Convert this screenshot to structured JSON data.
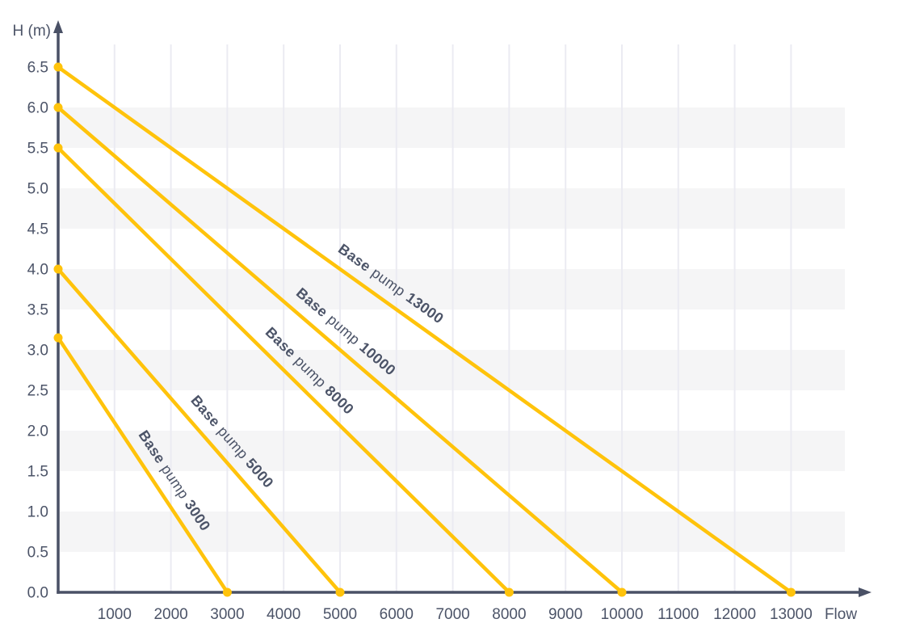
{
  "chart_data": {
    "type": "line",
    "xlabel": "Flow",
    "ylabel": "H (m)",
    "x_ticks": [
      1000,
      2000,
      3000,
      4000,
      5000,
      6000,
      7000,
      8000,
      9000,
      10000,
      11000,
      12000,
      13000
    ],
    "y_ticks": [
      "0.0",
      "0.5",
      "1.0",
      "1.5",
      "2.0",
      "2.5",
      "3.0",
      "3.5",
      "4.0",
      "4.5",
      "5.0",
      "5.5",
      "6.0",
      "6.5"
    ],
    "xlim": [
      0,
      14000
    ],
    "ylim": [
      0,
      6.75
    ],
    "grid": {
      "vertical_gridlines": true,
      "horizontal_gridlines": false,
      "shaded_bands_head_ranges": [
        [
          0.5,
          1.0
        ],
        [
          1.5,
          2.0
        ],
        [
          2.5,
          3.0
        ],
        [
          3.5,
          4.0
        ],
        [
          4.5,
          5.0
        ],
        [
          5.5,
          6.0
        ]
      ]
    },
    "series": [
      {
        "name": "Base pump 3000",
        "label_parts": [
          {
            "text": "Base",
            "bold": true
          },
          {
            "text": "pump",
            "bold": false
          },
          {
            "text": "3000",
            "bold": true
          }
        ],
        "points": [
          [
            0,
            3.15
          ],
          [
            3000,
            0
          ]
        ],
        "head_max_m": 3.15,
        "flow_max": 3000,
        "label_t": 0.6
      },
      {
        "name": "Base pump 5000",
        "label_parts": [
          {
            "text": "Base",
            "bold": true
          },
          {
            "text": "pump",
            "bold": false
          },
          {
            "text": "5000",
            "bold": true
          }
        ],
        "points": [
          [
            0,
            4.0
          ],
          [
            5000,
            0
          ]
        ],
        "head_max_m": 4.0,
        "flow_max": 5000,
        "label_t": 0.57
      },
      {
        "name": "Base pump 8000",
        "label_parts": [
          {
            "text": "Base",
            "bold": true
          },
          {
            "text": "pump",
            "bold": false
          },
          {
            "text": "8000",
            "bold": true
          }
        ],
        "points": [
          [
            0,
            5.5
          ],
          [
            8000,
            0
          ]
        ],
        "head_max_m": 5.5,
        "flow_max": 8000,
        "label_t": 0.53
      },
      {
        "name": "Base pump 10000",
        "label_parts": [
          {
            "text": "Base",
            "bold": true
          },
          {
            "text": "pump",
            "bold": false
          },
          {
            "text": "10000",
            "bold": true
          }
        ],
        "points": [
          [
            0,
            6.0
          ],
          [
            10000,
            0
          ]
        ],
        "head_max_m": 6.0,
        "flow_max": 10000,
        "label_t": 0.49
      },
      {
        "name": "Base pump 13000",
        "label_parts": [
          {
            "text": "Base",
            "bold": true
          },
          {
            "text": "pump",
            "bold": false
          },
          {
            "text": "13000",
            "bold": true
          }
        ],
        "points": [
          [
            0,
            6.5
          ],
          [
            13000,
            0
          ]
        ],
        "head_max_m": 6.5,
        "flow_max": 13000,
        "label_t": 0.44
      }
    ],
    "colors": {
      "curve": "#FFC30B",
      "axis": "#4A5166",
      "text": "#4C5468",
      "band": "#F5F5F6",
      "gridline": "#EBEBF2",
      "background": "#FFFFFF"
    },
    "legend": "inline-rotated-labels-on-curves"
  }
}
